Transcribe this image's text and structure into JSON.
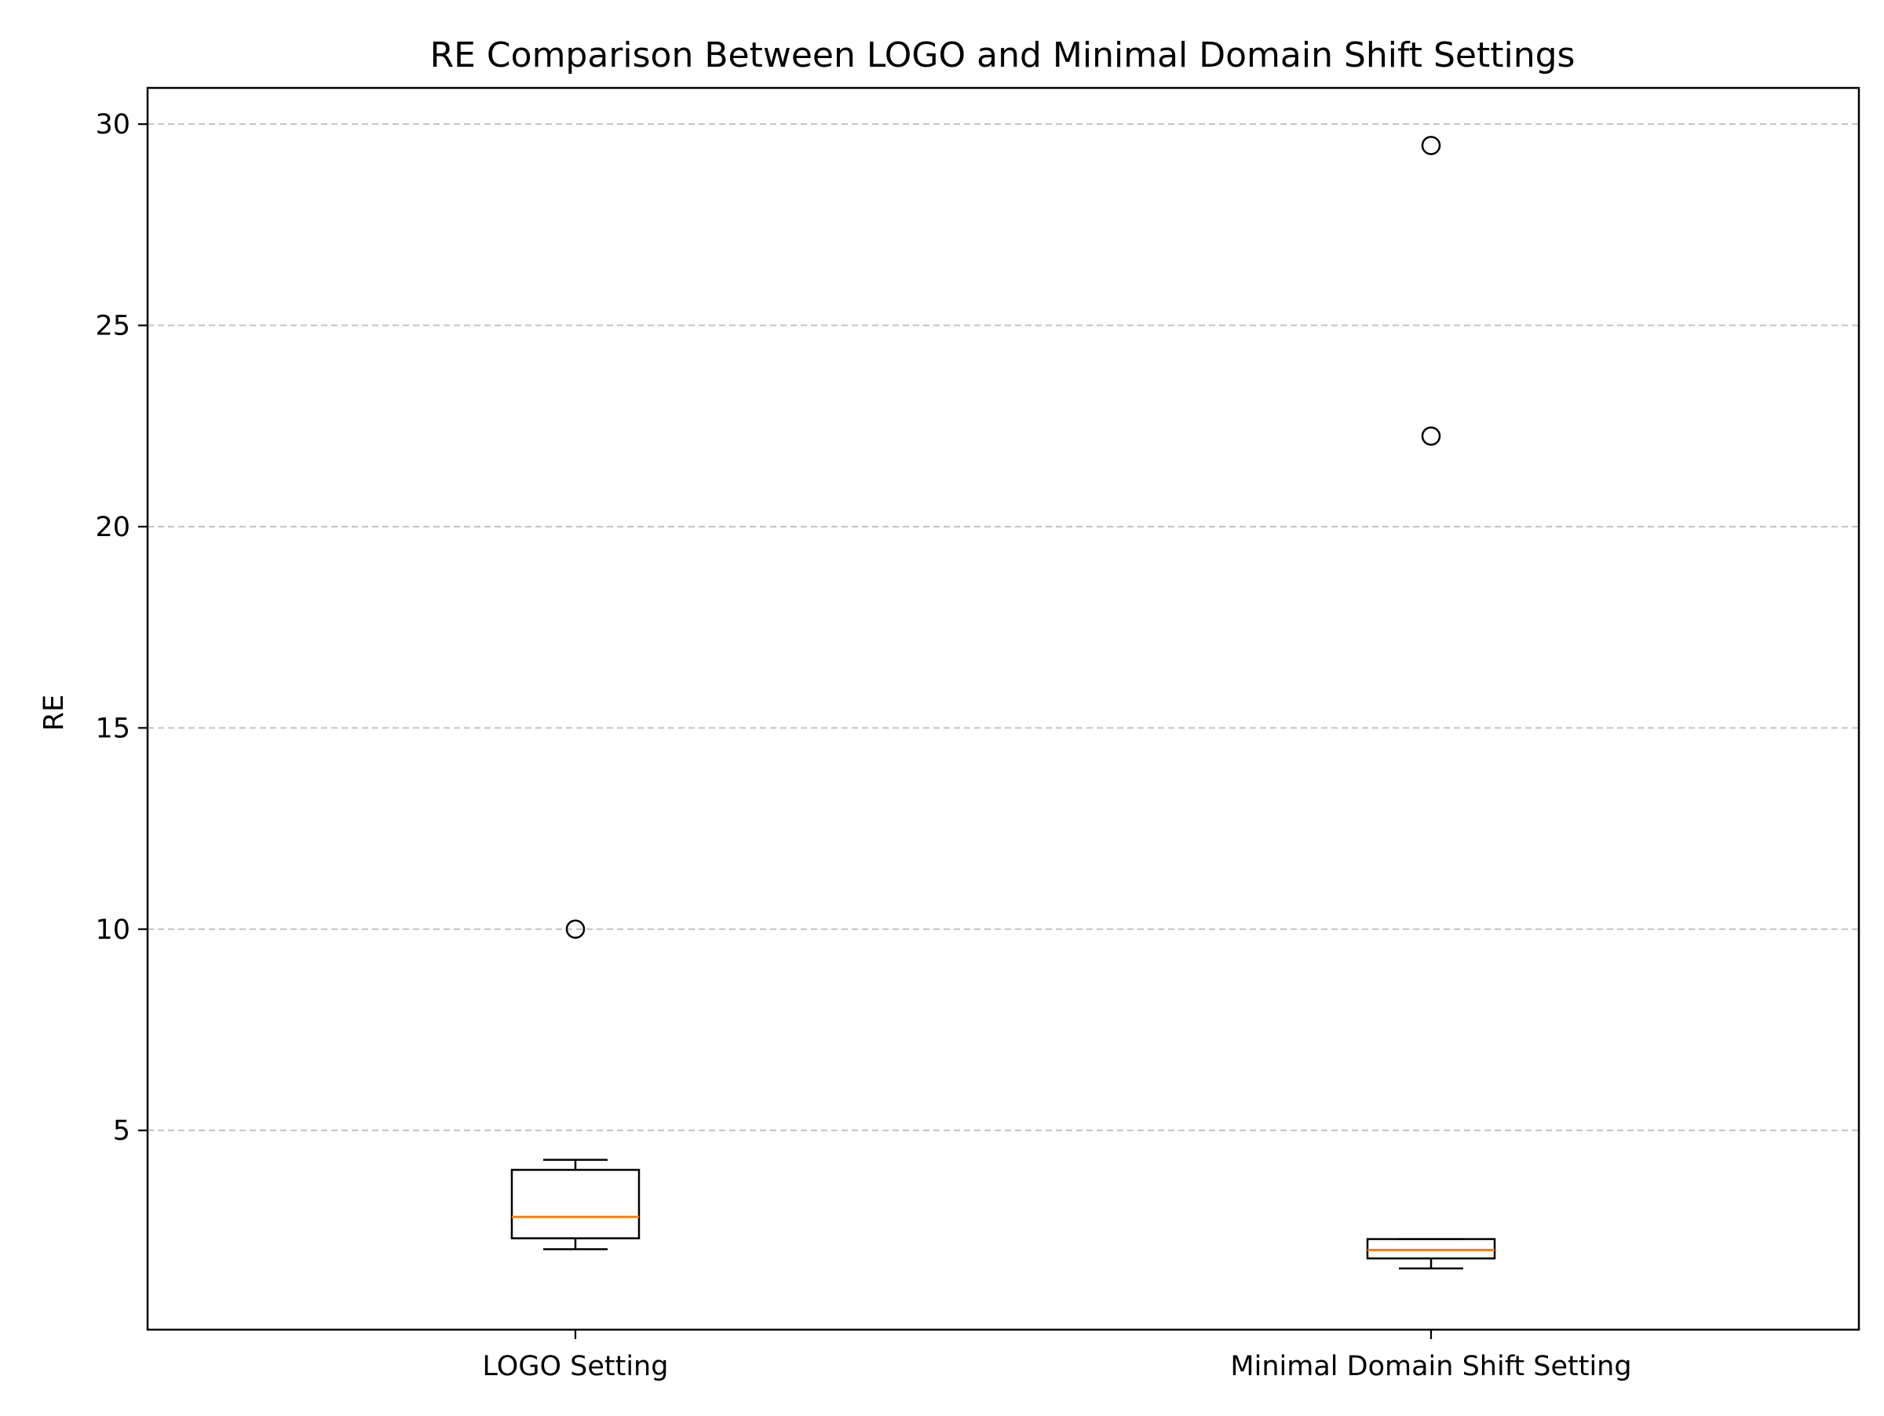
{
  "chart_data": {
    "type": "boxplot",
    "title": "RE Comparison Between LOGO and Minimal Domain Shift Settings",
    "xlabel": "",
    "ylabel": "RE",
    "categories": [
      "LOGO Setting",
      "Minimal Domain Shift Setting"
    ],
    "ylim": [
      0.05,
      30.9
    ],
    "yticks": [
      5,
      10,
      15,
      20,
      25,
      30
    ],
    "grid": "y-dashed",
    "boxes": [
      {
        "category": "LOGO Setting",
        "whisker_low": 2.05,
        "q1": 2.32,
        "median": 2.85,
        "q3": 4.02,
        "whisker_high": 4.27,
        "outliers": [
          10.0
        ]
      },
      {
        "category": "Minimal Domain Shift Setting",
        "whisker_low": 1.57,
        "q1": 1.82,
        "median": 2.03,
        "q3": 2.3,
        "whisker_high": 2.3,
        "outliers": [
          22.25,
          29.47
        ]
      }
    ],
    "colors": {
      "box": "#000000",
      "median": "#ff7f0e",
      "grid": "#b0b0b0"
    }
  }
}
